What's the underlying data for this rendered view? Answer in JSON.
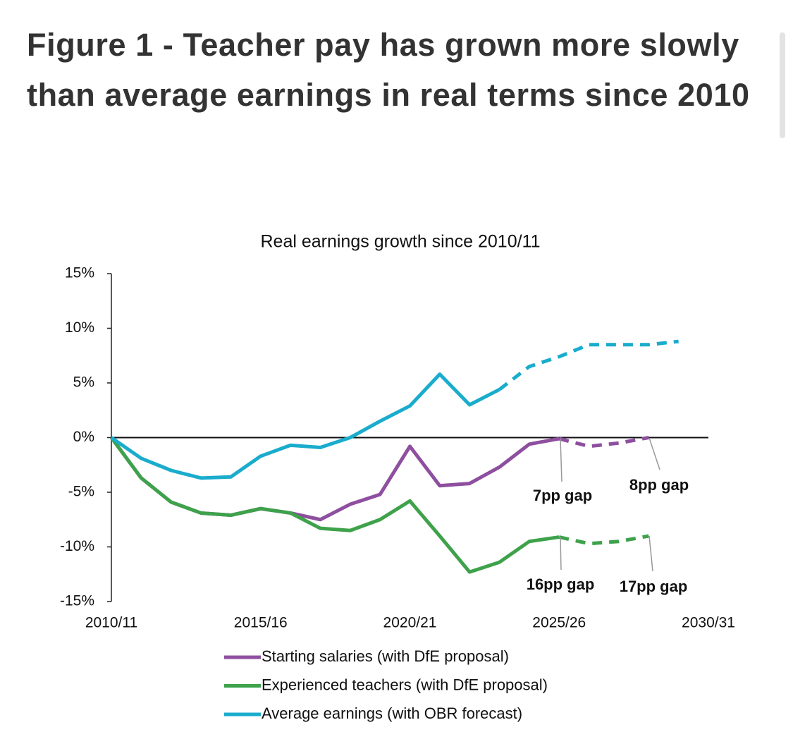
{
  "heading": "Figure 1 - Teacher pay has grown more slowly than average earnings in real terms since 2010",
  "chart_data": {
    "type": "line",
    "title": "Real earnings growth since 2010/11",
    "x": [
      2010,
      2011,
      2012,
      2013,
      2014,
      2015,
      2016,
      2017,
      2018,
      2019,
      2020,
      2021,
      2022,
      2023,
      2024,
      2025,
      2026,
      2027,
      2028,
      2029
    ],
    "series": [
      {
        "name": "Starting salaries (with DfE proposal)",
        "color": "#8e4f9f",
        "dash_from": 2025,
        "values": [
          0,
          -3.7,
          -5.9,
          -6.9,
          -7.1,
          -6.5,
          -6.9,
          -7.5,
          -6.1,
          -5.2,
          -0.8,
          -4.4,
          -4.2,
          -2.7,
          -0.6,
          -0.1,
          -0.8,
          -0.5,
          0,
          null
        ]
      },
      {
        "name": "Experienced teachers (with DfE proposal)",
        "color": "#3ea24b",
        "dash_from": 2025,
        "values": [
          0,
          -3.7,
          -5.9,
          -6.9,
          -7.1,
          -6.5,
          -6.9,
          -8.3,
          -8.5,
          -7.5,
          -5.8,
          -9.0,
          -12.3,
          -11.4,
          -9.5,
          -9.1,
          -9.7,
          -9.5,
          -9.0,
          null
        ]
      },
      {
        "name": "Average earnings (with OBR forecast)",
        "color": "#1aaccc",
        "dash_from": 2023,
        "values": [
          0,
          -1.9,
          -3.0,
          -3.7,
          -3.6,
          -1.7,
          -0.7,
          -0.9,
          0,
          1.5,
          2.9,
          5.8,
          3.0,
          4.4,
          6.5,
          7.4,
          8.5,
          8.5,
          8.5,
          8.8
        ]
      }
    ],
    "xlim": [
      2010,
      2030
    ],
    "xticks": [
      {
        "value": 2010,
        "label": "2010/11"
      },
      {
        "value": 2015,
        "label": "2015/16"
      },
      {
        "value": 2020,
        "label": "2020/21"
      },
      {
        "value": 2025,
        "label": "2025/26"
      },
      {
        "value": 2030,
        "label": "2030/31"
      }
    ],
    "ylim": [
      -15,
      15
    ],
    "yticks": [
      {
        "value": -15,
        "label": "-15%"
      },
      {
        "value": -10,
        "label": "-10%"
      },
      {
        "value": -5,
        "label": "-5%"
      },
      {
        "value": 0,
        "label": "0%"
      },
      {
        "value": 5,
        "label": "5%"
      },
      {
        "value": 10,
        "label": "10%"
      },
      {
        "value": 15,
        "label": "15%"
      }
    ],
    "annotations": [
      {
        "text": "7pp gap",
        "color": "#8e4f9f"
      },
      {
        "text": "8pp gap",
        "color": "#8e4f9f"
      },
      {
        "text": "16pp gap",
        "color": "#3ea24b"
      },
      {
        "text": "17pp gap",
        "color": "#3ea24b"
      }
    ]
  }
}
